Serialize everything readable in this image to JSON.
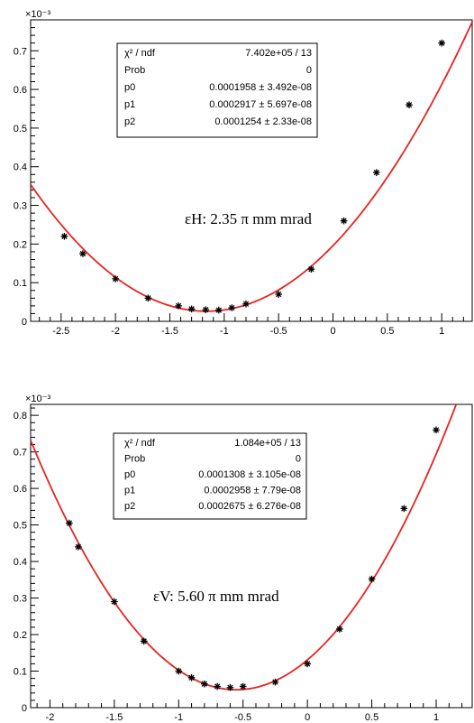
{
  "chart_data": [
    {
      "type": "scatter",
      "title": "",
      "xlabel": "",
      "ylabel": "",
      "xlim": [
        -2.78,
        1.28
      ],
      "ylim": [
        0,
        0.00078
      ],
      "y_exponent_label": "×10⁻³",
      "x_ticks": [
        -2.5,
        -2,
        -1.5,
        -1,
        -0.5,
        0,
        0.5,
        1
      ],
      "x_tick_labels": [
        "-2.5",
        "-2",
        "-1.5",
        "-1",
        "-0.5",
        "0",
        "0.5",
        "1"
      ],
      "y_ticks": [
        0,
        0.0001,
        0.0002,
        0.0003,
        0.0004,
        0.0005,
        0.0006,
        0.0007
      ],
      "y_tick_labels": [
        "0",
        "0.1",
        "0.2",
        "0.3",
        "0.4",
        "0.5",
        "0.6",
        "0.7"
      ],
      "series": [
        {
          "marker": "star",
          "x": [
            -2.47,
            -2.3,
            -2.0,
            -1.7,
            -1.42,
            -1.3,
            -1.17,
            -1.05,
            -0.93,
            -0.8,
            -0.5,
            -0.2,
            0.1,
            0.4,
            0.7,
            1.0
          ],
          "y": [
            0.00022,
            0.000175,
            0.00011,
            6e-05,
            4e-05,
            3.2e-05,
            3e-05,
            2.9e-05,
            3.5e-05,
            4.5e-05,
            7e-05,
            0.000135,
            0.00026,
            0.000385,
            0.00056,
            0.00072
          ]
        }
      ],
      "fit": {
        "p0": 0.0001958,
        "p1": 0.0002917,
        "p2": 0.0001254,
        "color": "#e8231f"
      },
      "stats": [
        {
          "label": "χ² / ndf",
          "value": "7.402e+05 / 13"
        },
        {
          "label": "Prob",
          "value": "0"
        },
        {
          "label": "p0",
          "value": "0.0001958 ± 3.492e-08"
        },
        {
          "label": "p1",
          "value": "0.0002917 ± 5.697e-08"
        },
        {
          "label": "p2",
          "value": "0.0001254 ± 2.33e-08"
        }
      ],
      "annotation": "εH: 2.35 π mm mrad"
    },
    {
      "type": "scatter",
      "title": "",
      "xlabel": "",
      "ylabel": "",
      "xlim": [
        -2.15,
        1.28
      ],
      "ylim": [
        0,
        0.00083
      ],
      "y_exponent_label": "×10⁻³",
      "x_ticks": [
        -2,
        -1.5,
        -1,
        -0.5,
        0,
        0.5,
        1
      ],
      "x_tick_labels": [
        "-2",
        "-1.5",
        "-1",
        "-0.5",
        "0",
        "0.5",
        "1"
      ],
      "y_ticks": [
        0,
        0.0001,
        0.0002,
        0.0003,
        0.0004,
        0.0005,
        0.0006,
        0.0007,
        0.0008
      ],
      "y_tick_labels": [
        "0",
        "0.1",
        "0.2",
        "0.3",
        "0.4",
        "0.5",
        "0.6",
        "0.7",
        "0.8"
      ],
      "series": [
        {
          "marker": "star",
          "x": [
            -1.85,
            -1.78,
            -1.5,
            -1.27,
            -1.0,
            -0.9,
            -0.8,
            -0.7,
            -0.6,
            -0.5,
            -0.25,
            0.0,
            0.25,
            0.5,
            0.75,
            1.0
          ],
          "y": [
            0.000505,
            0.00044,
            0.00029,
            0.000182,
            0.0001,
            8.2e-05,
            6.5e-05,
            5.8e-05,
            5.5e-05,
            5.8e-05,
            7e-05,
            0.00012,
            0.000215,
            0.000352,
            0.000545,
            0.00076
          ]
        }
      ],
      "fit": {
        "p0": 0.0001308,
        "p1": 0.0002958,
        "p2": 0.0002675,
        "color": "#e8231f"
      },
      "stats": [
        {
          "label": "χ² / ndf",
          "value": "1.084e+05 / 13"
        },
        {
          "label": "Prob",
          "value": "0"
        },
        {
          "label": "p0",
          "value": "0.0001308 ± 3.105e-08"
        },
        {
          "label": "p1",
          "value": "0.0002958 ± 7.79e-08"
        },
        {
          "label": "p2",
          "value": "0.0002675 ± 6.276e-08"
        }
      ],
      "annotation": "εV: 5.60 π mm mrad"
    }
  ]
}
